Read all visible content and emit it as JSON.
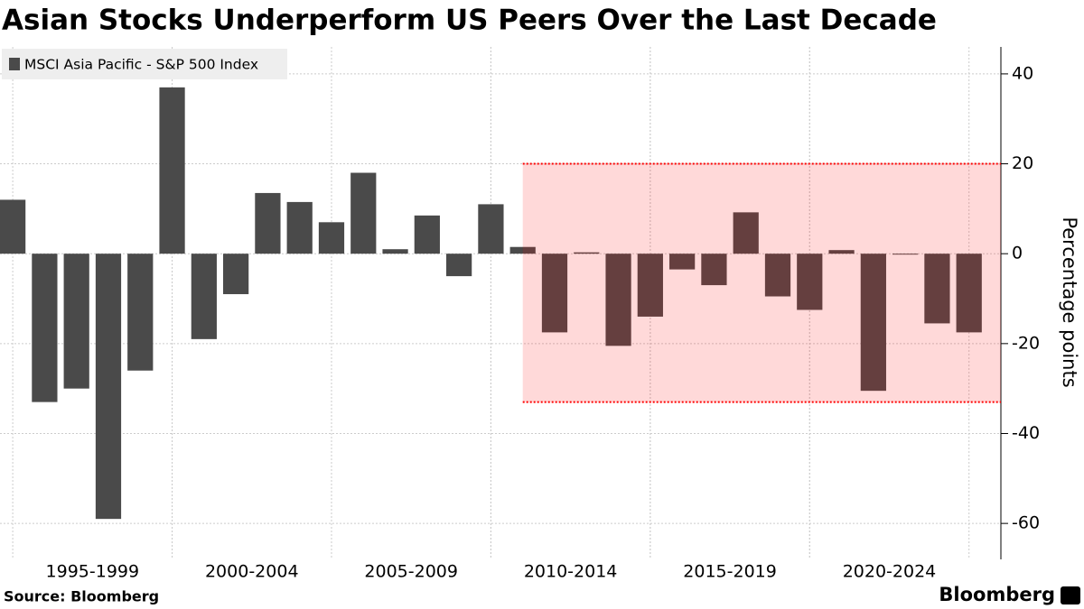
{
  "chart_data": {
    "type": "bar",
    "title": "Asian Stocks Underperform US Peers Over the Last Decade",
    "source": "Source: Bloomberg",
    "brand": "Bloomberg",
    "y_label": "Percentage points",
    "x": [
      1994,
      1995,
      1996,
      1997,
      1998,
      1999,
      2000,
      2001,
      2002,
      2003,
      2004,
      2005,
      2006,
      2007,
      2008,
      2009,
      2010,
      2011,
      2012,
      2013,
      2014,
      2015,
      2016,
      2017,
      2018,
      2019,
      2020,
      2021,
      2022,
      2023,
      2024
    ],
    "series": [
      {
        "name": "MSCI Asia Pacific - S&P 500 Index",
        "color": "#4a4a4a",
        "values": [
          12,
          -33,
          -30,
          -59,
          -26,
          37,
          -19,
          -9,
          13.5,
          11.5,
          7,
          18,
          1,
          8.5,
          -5,
          11,
          1.5,
          -17.5,
          0.3,
          -20.5,
          -14,
          -3.5,
          -7,
          9.2,
          -9.5,
          -12.5,
          0.8,
          -30.5,
          -0.2,
          -15.5,
          -17.5
        ]
      }
    ],
    "xlim": [
      1993.6,
      2025
    ],
    "xticks": [
      {
        "value": 1996.5,
        "label": "1995-1999"
      },
      {
        "value": 2001.5,
        "label": "2000-2004"
      },
      {
        "value": 2006.5,
        "label": "2005-2009"
      },
      {
        "value": 2011.5,
        "label": "2010-2014"
      },
      {
        "value": 2016.5,
        "label": "2015-2019"
      },
      {
        "value": 2021.5,
        "label": "2020-2024"
      }
    ],
    "ylim": [
      -68,
      46
    ],
    "yticks": [
      40,
      20,
      0,
      -20,
      -40,
      -60
    ],
    "grid": true,
    "highlight": {
      "x0": 2010,
      "y0": -33,
      "y1": 20,
      "color": "#ff0000"
    }
  }
}
